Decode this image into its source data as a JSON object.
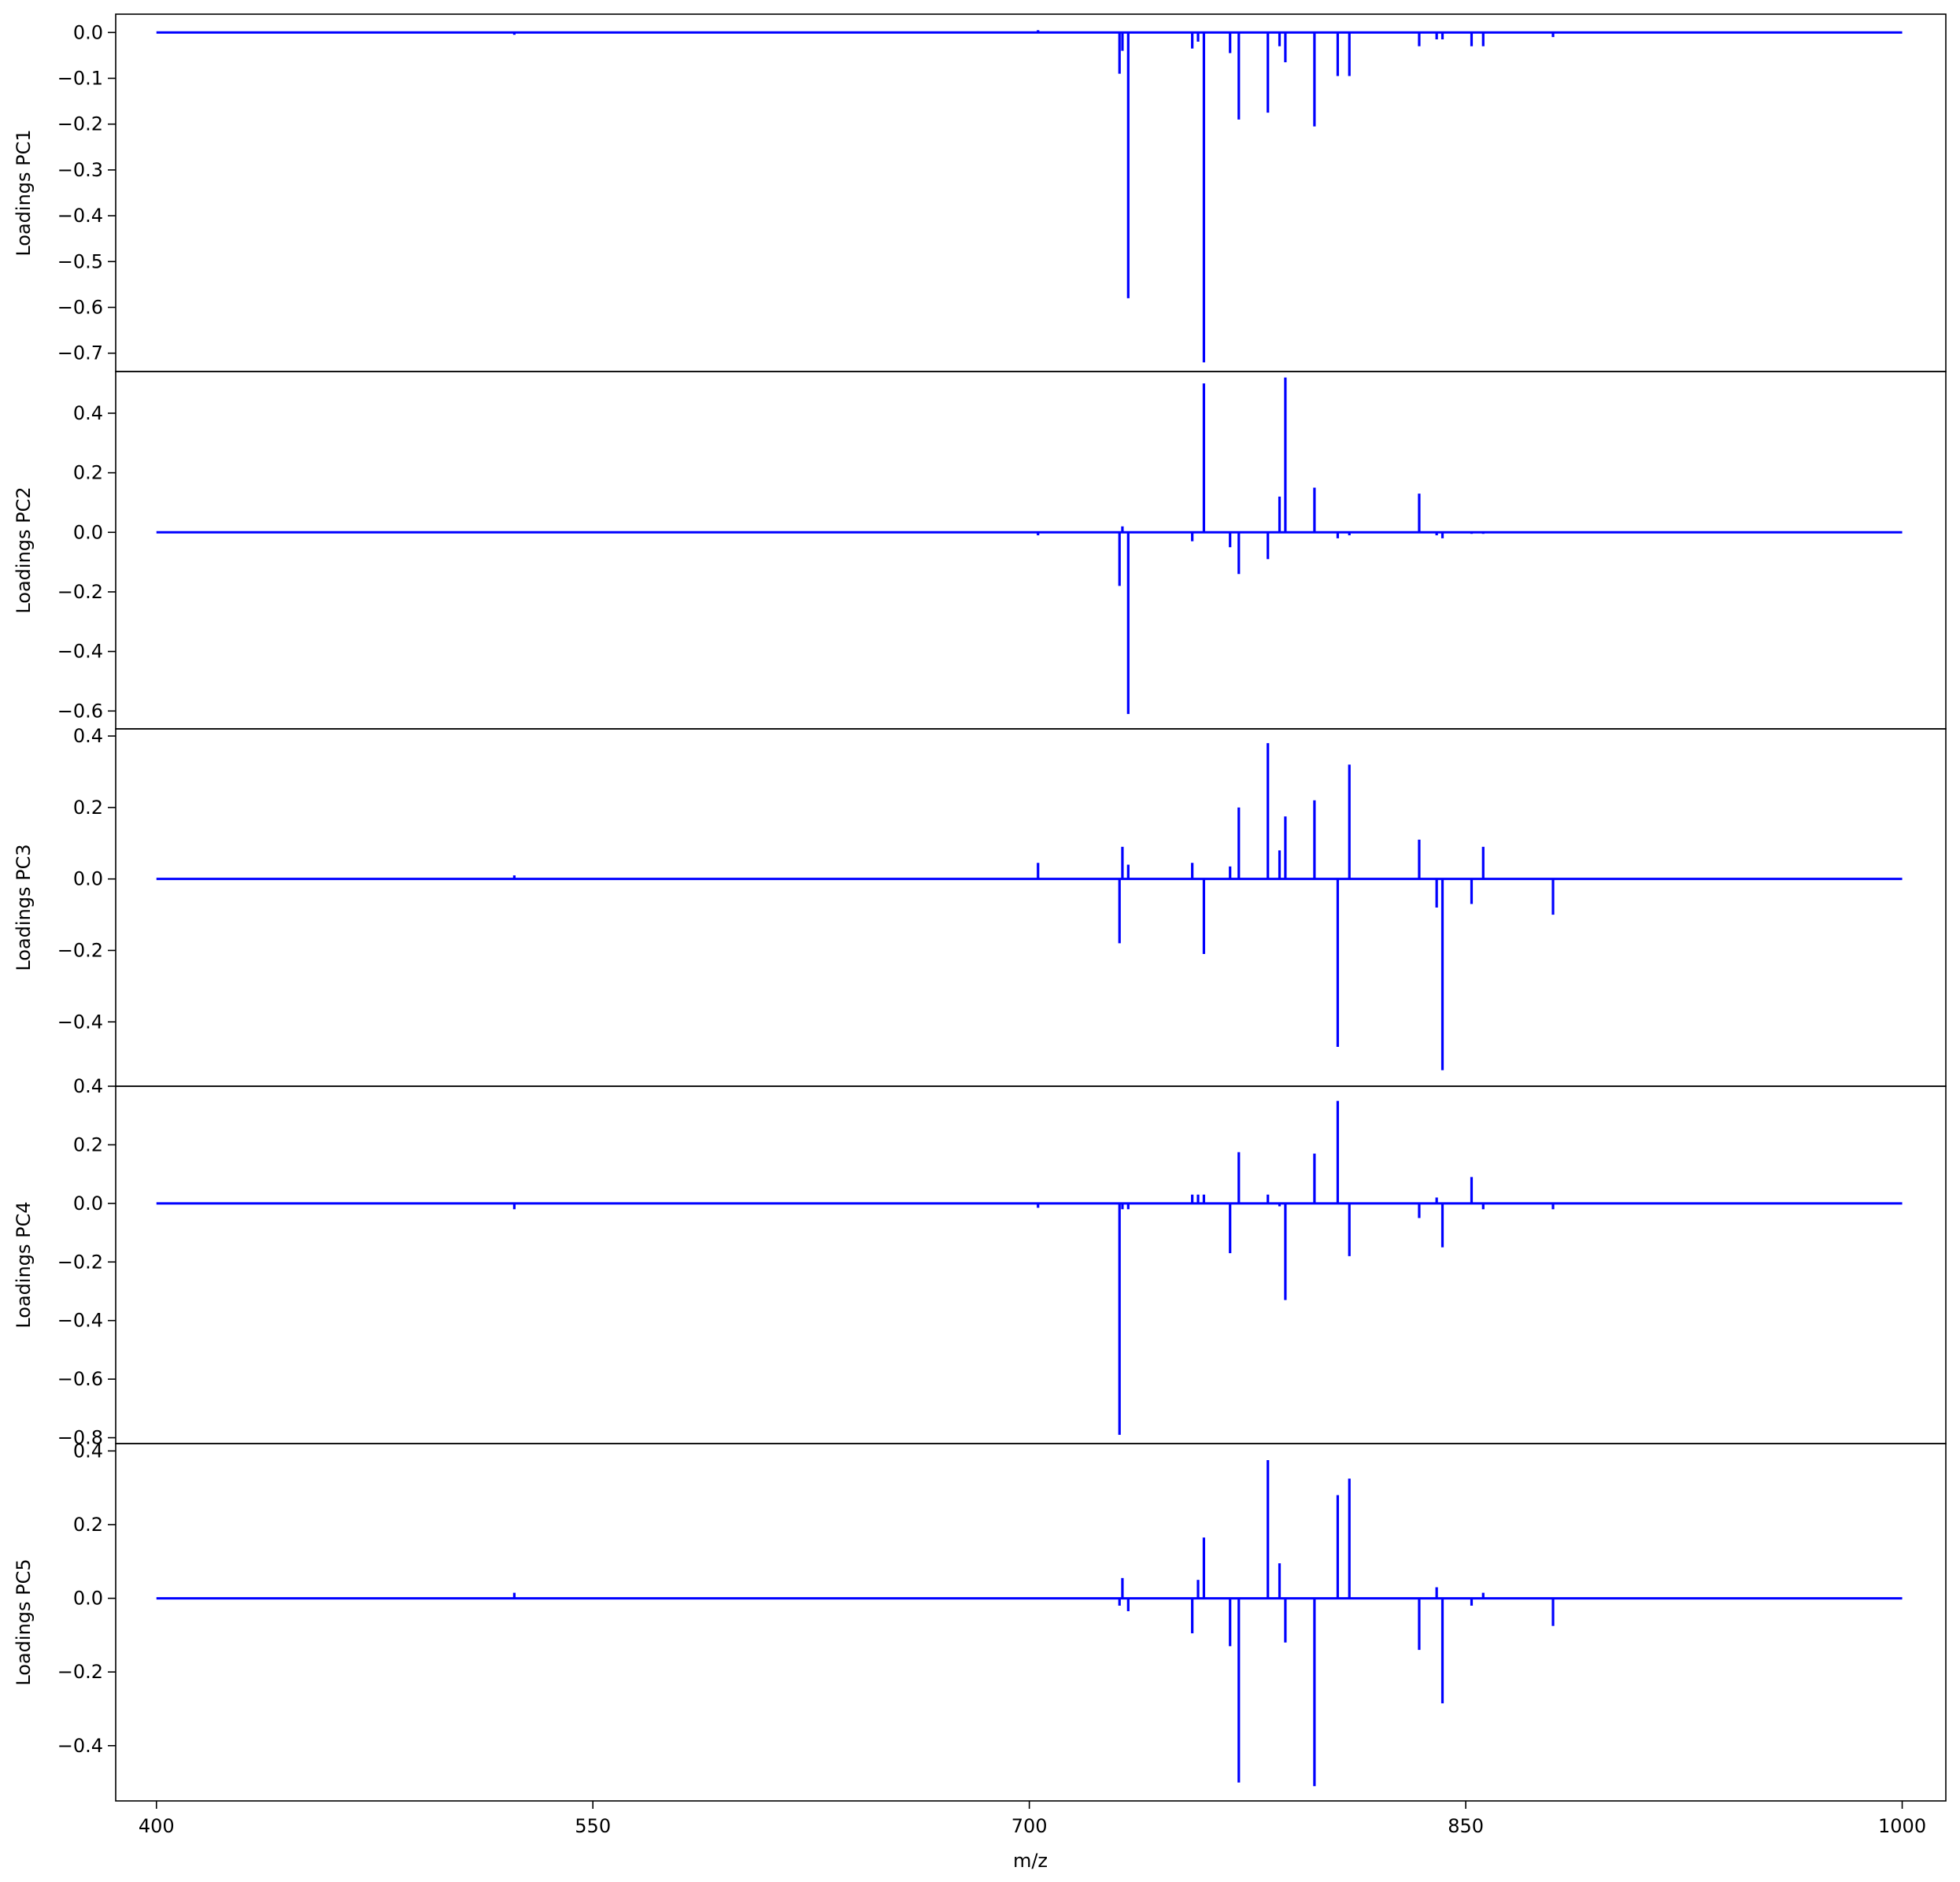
{
  "chart_data": {
    "type": "line",
    "xlabel": "m/z",
    "xlim": [
      386,
      1015
    ],
    "x_ticks": [
      "400",
      "550",
      "700",
      "850",
      "1000"
    ],
    "x_tick_values": [
      400,
      550,
      700,
      850,
      1000
    ],
    "line_color": "#0000ff",
    "grid": false,
    "legend": "none",
    "baseline_x_range": [
      400,
      1000
    ],
    "panels": [
      {
        "ylabel": "Loadings PC1",
        "ylim": [
          -0.74,
          0.04
        ],
        "y_ticks": [
          "0.0",
          "−0.1",
          "−0.2",
          "−0.3",
          "−0.4",
          "−0.5",
          "−0.6",
          "−0.7"
        ],
        "y_tick_values": [
          0.0,
          -0.1,
          -0.2,
          -0.3,
          -0.4,
          -0.5,
          -0.6,
          -0.7
        ],
        "peaks": [
          {
            "x": 523,
            "y": -0.005
          },
          {
            "x": 703,
            "y": 0.005
          },
          {
            "x": 731,
            "y": -0.09
          },
          {
            "x": 732,
            "y": -0.04
          },
          {
            "x": 734,
            "y": -0.58
          },
          {
            "x": 756,
            "y": -0.035
          },
          {
            "x": 758,
            "y": -0.02
          },
          {
            "x": 760,
            "y": -0.72
          },
          {
            "x": 769,
            "y": -0.045
          },
          {
            "x": 772,
            "y": -0.19
          },
          {
            "x": 782,
            "y": -0.175
          },
          {
            "x": 786,
            "y": -0.03
          },
          {
            "x": 788,
            "y": -0.065
          },
          {
            "x": 798,
            "y": -0.205
          },
          {
            "x": 806,
            "y": -0.095
          },
          {
            "x": 810,
            "y": -0.095
          },
          {
            "x": 834,
            "y": -0.03
          },
          {
            "x": 840,
            "y": -0.015
          },
          {
            "x": 842,
            "y": -0.015
          },
          {
            "x": 852,
            "y": -0.03
          },
          {
            "x": 856,
            "y": -0.03
          },
          {
            "x": 880,
            "y": -0.01
          }
        ]
      },
      {
        "ylabel": "Loadings PC2",
        "ylim": [
          -0.66,
          0.54
        ],
        "y_ticks": [
          "0.4",
          "0.2",
          "0.0",
          "−0.2",
          "−0.4",
          "−0.6"
        ],
        "y_tick_values": [
          0.4,
          0.2,
          0.0,
          -0.2,
          -0.4,
          -0.6
        ],
        "peaks": [
          {
            "x": 703,
            "y": -0.01
          },
          {
            "x": 731,
            "y": -0.18
          },
          {
            "x": 732,
            "y": 0.02
          },
          {
            "x": 734,
            "y": -0.61
          },
          {
            "x": 756,
            "y": -0.03
          },
          {
            "x": 760,
            "y": 0.5
          },
          {
            "x": 769,
            "y": -0.05
          },
          {
            "x": 772,
            "y": -0.14
          },
          {
            "x": 782,
            "y": -0.09
          },
          {
            "x": 786,
            "y": 0.12
          },
          {
            "x": 788,
            "y": 0.52
          },
          {
            "x": 798,
            "y": 0.15
          },
          {
            "x": 806,
            "y": -0.02
          },
          {
            "x": 810,
            "y": -0.01
          },
          {
            "x": 834,
            "y": 0.13
          },
          {
            "x": 840,
            "y": -0.01
          },
          {
            "x": 842,
            "y": -0.02
          },
          {
            "x": 852,
            "y": -0.005
          },
          {
            "x": 856,
            "y": -0.005
          }
        ]
      },
      {
        "ylabel": "Loadings PC3",
        "ylim": [
          -0.58,
          0.42
        ],
        "y_ticks": [
          "0.4",
          "0.2",
          "0.0",
          "−0.2",
          "−0.4"
        ],
        "y_tick_values": [
          0.4,
          0.2,
          0.0,
          -0.2,
          -0.4
        ],
        "peaks": [
          {
            "x": 523,
            "y": 0.01
          },
          {
            "x": 703,
            "y": 0.045
          },
          {
            "x": 731,
            "y": -0.18
          },
          {
            "x": 732,
            "y": 0.09
          },
          {
            "x": 734,
            "y": 0.04
          },
          {
            "x": 756,
            "y": 0.045
          },
          {
            "x": 760,
            "y": -0.21
          },
          {
            "x": 769,
            "y": 0.035
          },
          {
            "x": 772,
            "y": 0.2
          },
          {
            "x": 782,
            "y": 0.38
          },
          {
            "x": 786,
            "y": 0.08
          },
          {
            "x": 788,
            "y": 0.175
          },
          {
            "x": 798,
            "y": 0.22
          },
          {
            "x": 806,
            "y": -0.47
          },
          {
            "x": 810,
            "y": 0.32
          },
          {
            "x": 834,
            "y": 0.11
          },
          {
            "x": 840,
            "y": -0.08
          },
          {
            "x": 842,
            "y": -0.535
          },
          {
            "x": 852,
            "y": -0.07
          },
          {
            "x": 856,
            "y": 0.09
          },
          {
            "x": 880,
            "y": -0.1
          }
        ]
      },
      {
        "ylabel": "Loadings PC4",
        "ylim": [
          -0.82,
          0.4
        ],
        "y_ticks": [
          "0.4",
          "0.2",
          "0.0",
          "−0.2",
          "−0.4",
          "−0.6",
          "−0.8"
        ],
        "y_tick_values": [
          0.4,
          0.2,
          0.0,
          -0.2,
          -0.4,
          -0.6,
          -0.8
        ],
        "peaks": [
          {
            "x": 523,
            "y": -0.02
          },
          {
            "x": 703,
            "y": -0.015
          },
          {
            "x": 731,
            "y": -0.79
          },
          {
            "x": 732,
            "y": -0.02
          },
          {
            "x": 734,
            "y": -0.02
          },
          {
            "x": 756,
            "y": 0.03
          },
          {
            "x": 758,
            "y": 0.03
          },
          {
            "x": 760,
            "y": 0.03
          },
          {
            "x": 769,
            "y": -0.17
          },
          {
            "x": 772,
            "y": 0.175
          },
          {
            "x": 782,
            "y": 0.03
          },
          {
            "x": 786,
            "y": -0.01
          },
          {
            "x": 788,
            "y": -0.33
          },
          {
            "x": 798,
            "y": 0.17
          },
          {
            "x": 806,
            "y": 0.35
          },
          {
            "x": 810,
            "y": -0.18
          },
          {
            "x": 834,
            "y": -0.05
          },
          {
            "x": 840,
            "y": 0.02
          },
          {
            "x": 842,
            "y": -0.15
          },
          {
            "x": 852,
            "y": 0.09
          },
          {
            "x": 856,
            "y": -0.02
          },
          {
            "x": 880,
            "y": -0.02
          }
        ]
      },
      {
        "ylabel": "Loadings PC5",
        "ylim": [
          -0.55,
          0.42
        ],
        "y_ticks": [
          "0.4",
          "0.2",
          "0.0",
          "−0.2",
          "−0.4"
        ],
        "y_tick_values": [
          0.4,
          0.2,
          0.0,
          -0.2,
          -0.4
        ],
        "peaks": [
          {
            "x": 523,
            "y": 0.015
          },
          {
            "x": 731,
            "y": -0.02
          },
          {
            "x": 732,
            "y": 0.055
          },
          {
            "x": 734,
            "y": -0.035
          },
          {
            "x": 756,
            "y": -0.095
          },
          {
            "x": 758,
            "y": 0.05
          },
          {
            "x": 760,
            "y": 0.165
          },
          {
            "x": 769,
            "y": -0.13
          },
          {
            "x": 772,
            "y": -0.5
          },
          {
            "x": 782,
            "y": 0.375
          },
          {
            "x": 786,
            "y": 0.095
          },
          {
            "x": 788,
            "y": -0.12
          },
          {
            "x": 798,
            "y": -0.51
          },
          {
            "x": 806,
            "y": 0.28
          },
          {
            "x": 810,
            "y": 0.325
          },
          {
            "x": 834,
            "y": -0.14
          },
          {
            "x": 840,
            "y": 0.03
          },
          {
            "x": 842,
            "y": -0.285
          },
          {
            "x": 852,
            "y": -0.02
          },
          {
            "x": 856,
            "y": 0.015
          },
          {
            "x": 880,
            "y": -0.075
          }
        ]
      }
    ]
  }
}
